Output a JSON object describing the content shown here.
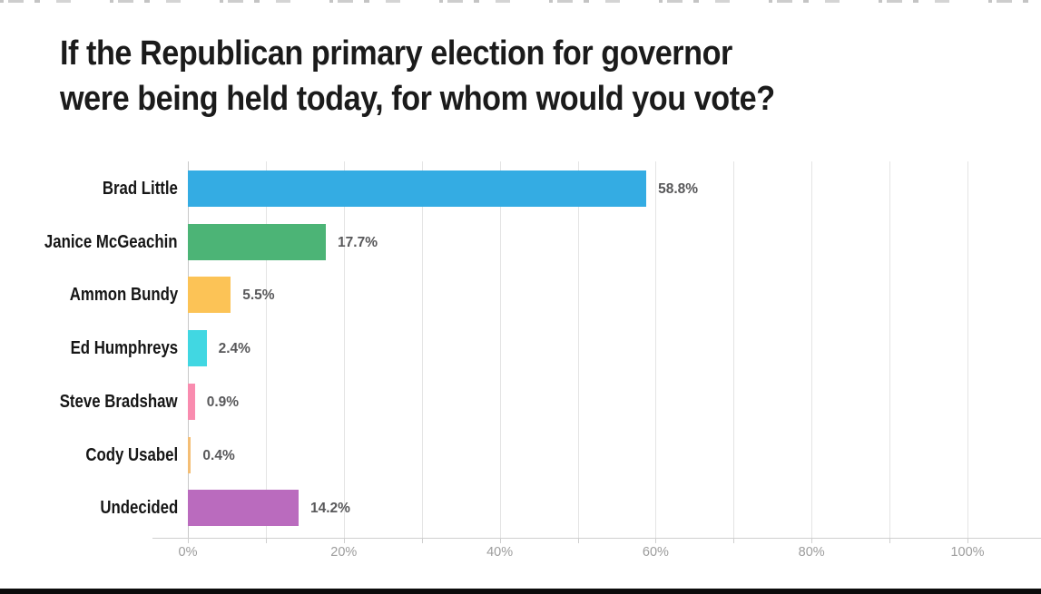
{
  "page": {
    "title_line1": "If the Republican primary election for governor",
    "title_line2": "were being held today, for whom would you vote?"
  },
  "chart_data": {
    "type": "bar",
    "orientation": "horizontal",
    "title": "If the Republican primary election for governor were being held today, for whom would you vote?",
    "categories": [
      "Brad Little",
      "Janice McGeachin",
      "Ammon Bundy",
      "Ed Humphreys",
      "Steve Bradshaw",
      "Cody Usabel",
      "Undecided"
    ],
    "values": [
      58.8,
      17.7,
      5.5,
      2.4,
      0.9,
      0.4,
      14.2
    ],
    "value_labels": [
      "58.8%",
      "17.7%",
      "5.5%",
      "2.4%",
      "0.9%",
      "0.4%",
      "14.2%"
    ],
    "bar_colors": [
      "#34ace3",
      "#4cb476",
      "#fcc356",
      "#41d7e2",
      "#f98caf",
      "#f4be75",
      "#ba6bbe"
    ],
    "xlabel": "",
    "ylabel": "",
    "xlim": [
      0,
      100
    ],
    "x_tick_labels": [
      "0%",
      "20%",
      "40%",
      "60%",
      "80%",
      "100%"
    ],
    "x_label_step": 20,
    "gridline_step": 10,
    "grid": true,
    "legend": false,
    "colors": {
      "title_text": "#1b1b1b",
      "category_label": "#161616",
      "value_label": "#58585a",
      "axis_label": "#9c9c9c",
      "gridline": "#e4e4e4",
      "axis_line": "#cfcfcf"
    }
  }
}
